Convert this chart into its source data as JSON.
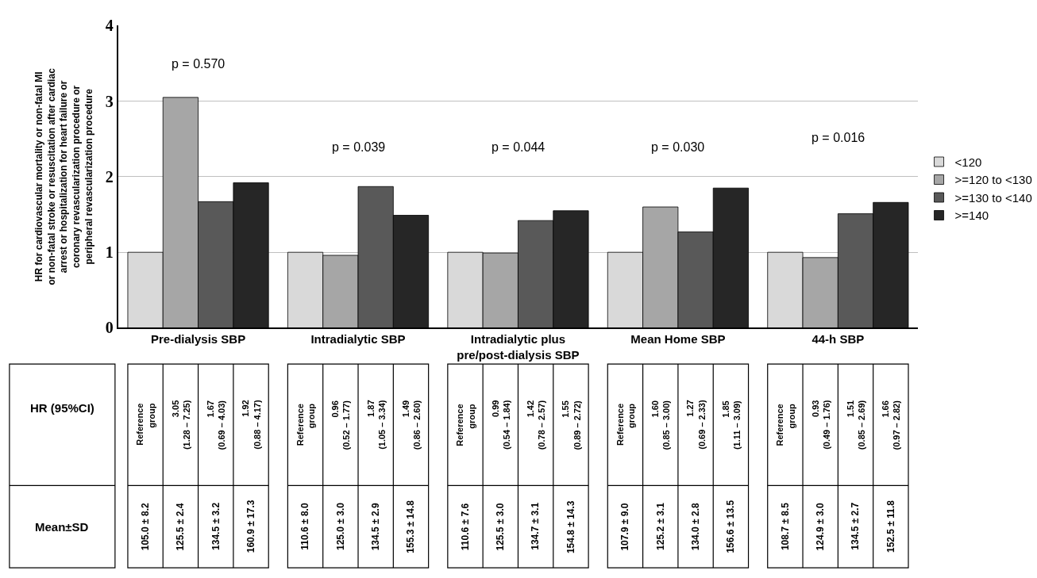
{
  "chart_data": {
    "type": "bar",
    "ylabel": "HR for cardiovascular mortality or non-fatal MI\nor non-fatal stroke or resuscitation after cardiac\narrest or hospitalization for heart failure or\ncoronary revascularization procedure or\nperipheral revascularization procedure",
    "categories": [
      "Pre-dialysis SBP",
      "Intradialytic SBP",
      "Intradialytic plus\npre/post-dialysis SBP",
      "Mean Home SBP",
      "44-h SBP"
    ],
    "series": [
      {
        "name": "<120",
        "color": "#d9d9d9",
        "values": [
          1,
          1,
          1,
          1,
          1
        ]
      },
      {
        "name": ">=120 to <130",
        "color": "#a6a6a6",
        "values": [
          3.05,
          0.96,
          0.99,
          1.6,
          0.93
        ]
      },
      {
        "name": ">=130 to <140",
        "color": "#595959",
        "values": [
          1.67,
          1.87,
          1.42,
          1.27,
          1.51
        ]
      },
      {
        "name": ">=140",
        "color": "#262626",
        "values": [
          1.92,
          1.49,
          1.55,
          1.85,
          1.66
        ]
      }
    ],
    "ylim": [
      0,
      4
    ],
    "yticks": [
      0,
      1,
      2,
      3,
      4
    ],
    "grid": "y",
    "legend": "right",
    "annotations": [
      "p = 0.570",
      "p = 0.039",
      "p = 0.044",
      "p = 0.030",
      "p = 0.016",
      "HR (95%CI)",
      "Mean±SD",
      "Reference\ngroup",
      "3.05\n(1.28 – 7.25)",
      "1.67\n(0.69 – 4.03)",
      "1.92\n(0.88 – 4.17)",
      "Reference\ngroup",
      "0.96\n(0.52 – 1.77)",
      "1.87\n(1.05 – 3.34)",
      "1.49\n(0.86 – 2.60)",
      "Reference\ngroup",
      "0.99\n(0.54 – 1.84)",
      "1.42\n(0.78 – 2.57)",
      "1.55\n(0.89 – 2.72)",
      "Reference\ngroup",
      "1.60\n(0.85 – 3.00)",
      "1.27\n(0.69 – 2.33)",
      "1.85\n(1.11 – 3.09)",
      "Reference\ngroup",
      "0.93\n(0.49 – 1.76)",
      "1.51\n(0.85 – 2.69)",
      "1.66\n(0.97 – 2.82)",
      "105.0 ± 8.2",
      "125.5 ± 2.4",
      "134.5 ± 3.2",
      "160.9 ± 17.3",
      "110.6 ± 8.0",
      "125.0 ± 3.0",
      "134.5 ± 2.9",
      "155.3 ± 14.8",
      "110.6 ± 7.6",
      "125.5 ± 3.0",
      "134.7 ± 3.1",
      "154.8 ± 14.3",
      "107.9 ± 9.0",
      "125.2 ± 3.1",
      "134.0 ± 2.8",
      "156.6 ± 13.5",
      "108.7 ± 8.5",
      "124.9 ± 3.0",
      "134.5 ± 2.7",
      "152.5 ± 11.8"
    ]
  }
}
